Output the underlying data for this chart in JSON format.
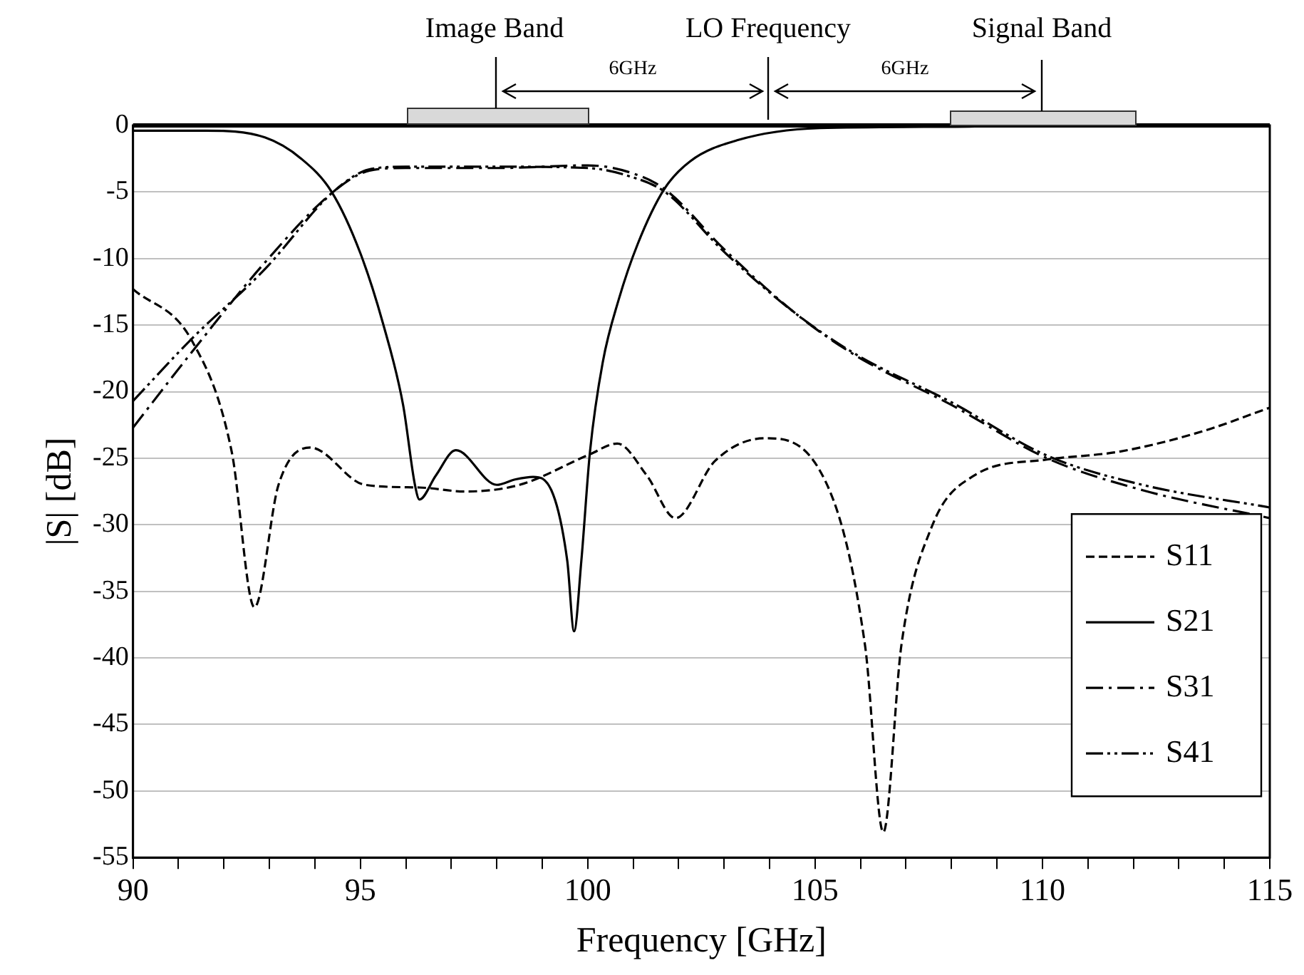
{
  "chart_data": {
    "type": "line",
    "xlabel": "Frequency [GHz]",
    "ylabel": "|S| [dB]",
    "xlim": [
      90,
      115
    ],
    "xticks": [
      90,
      {
        "value": 91,
        "label": null
      },
      {
        "value": 92,
        "label": null
      },
      {
        "value": 93,
        "label": null
      },
      {
        "value": 94,
        "label": null
      },
      95,
      {
        "value": 96,
        "label": null
      },
      {
        "value": 97,
        "label": null
      },
      {
        "value": 98,
        "label": null
      },
      {
        "value": 99,
        "label": null
      },
      100,
      {
        "value": 101,
        "label": null
      },
      {
        "value": 102,
        "label": null
      },
      {
        "value": 103,
        "label": null
      },
      {
        "value": 104,
        "label": null
      },
      105,
      {
        "value": 106,
        "label": null
      },
      {
        "value": 107,
        "label": null
      },
      {
        "value": 108,
        "label": null
      },
      {
        "value": 109,
        "label": null
      },
      110,
      {
        "value": 111,
        "label": null
      },
      {
        "value": 112,
        "label": null
      },
      {
        "value": 113,
        "label": null
      },
      {
        "value": 114,
        "label": null
      },
      115
    ],
    "ylim": [
      -55,
      0
    ],
    "yticks": [
      0,
      -5,
      -10,
      -15,
      -20,
      -25,
      -30,
      -35,
      -40,
      -45,
      -50,
      -55
    ],
    "grid": "y",
    "legend": "bottom right",
    "marker": "none",
    "series": [
      {
        "name": "S11",
        "color": "#000000",
        "line_style": "dashed",
        "x": [
          90,
          91.3,
          92.17,
          92.67,
          93.2,
          93.9,
          95.1,
          96.3,
          97.3,
          98.5,
          100.05,
          100.65,
          101.3,
          101.93,
          102.8,
          103.9,
          105.1,
          106.1,
          106.5,
          106.9,
          107.56,
          108.5,
          110.1,
          111.7,
          113.5,
          115
        ],
        "values": [
          -12.3,
          -16.2,
          -24.5,
          -36.2,
          -27,
          -24.2,
          -27,
          -27.2,
          -27.5,
          -27,
          -24.7,
          -23.9,
          -26.3,
          -29.5,
          -25.2,
          -23.5,
          -25.9,
          -39.1,
          -53.1,
          -39,
          -30.2,
          -26.3,
          -25.1,
          -24.5,
          -23,
          -21.2
        ]
      },
      {
        "name": "S21",
        "color": "#000000",
        "line_style": "solid",
        "x": [
          90,
          91.6,
          92.9,
          93.7,
          94.37,
          95,
          95.5,
          95.94,
          96.2,
          96.3,
          96.66,
          97.1,
          98,
          98.4,
          98.8,
          99.2,
          99.55,
          99.7,
          99.86,
          100.05,
          100.33,
          100.68,
          101.1,
          101.68,
          102.25,
          103.3,
          105.1,
          108,
          110,
          115
        ],
        "values": [
          -0.4,
          -0.4,
          -0.9,
          -2.5,
          -5,
          -9.6,
          -14.9,
          -21,
          -27,
          -28.1,
          -26.3,
          -24.4,
          -27,
          -26.6,
          -26.4,
          -27.4,
          -32.7,
          -38,
          -32.7,
          -24.5,
          -17.8,
          -13.1,
          -8.9,
          -4.8,
          -2.7,
          -1.1,
          -0.2,
          -0.1,
          0,
          0
        ]
      },
      {
        "name": "S31",
        "color": "#000000",
        "line_style": "dashdot",
        "x": [
          90,
          91.3,
          92.9,
          94.4,
          95.2,
          96,
          98,
          100,
          100.9,
          101.7,
          103,
          104.6,
          105.9,
          108,
          110.1,
          112.2,
          115
        ],
        "values": [
          -22.7,
          -17,
          -10.3,
          -5,
          -3.4,
          -3.2,
          -3.2,
          -3,
          -3.5,
          -4.8,
          -9.3,
          -14.2,
          -17.3,
          -21,
          -25,
          -27.4,
          -29.5
        ]
      },
      {
        "name": "S41",
        "color": "#000000",
        "line_style": "dashdotdot",
        "x": [
          90,
          91.3,
          92.9,
          94.4,
          95.2,
          96,
          98,
          100,
          100.9,
          101.7,
          103,
          104.6,
          105.9,
          108,
          110.1,
          112.2,
          115
        ],
        "values": [
          -20.7,
          -16,
          -10.8,
          -5,
          -3.3,
          -3.1,
          -3.1,
          -3.2,
          -3.8,
          -5,
          -9.5,
          -14.2,
          -17.2,
          -20.8,
          -24.8,
          -27,
          -28.7
        ]
      }
    ],
    "annotations": [
      "Image Band",
      "LO Frequency",
      "Signal Band",
      "6GHz",
      "6GHz"
    ]
  }
}
